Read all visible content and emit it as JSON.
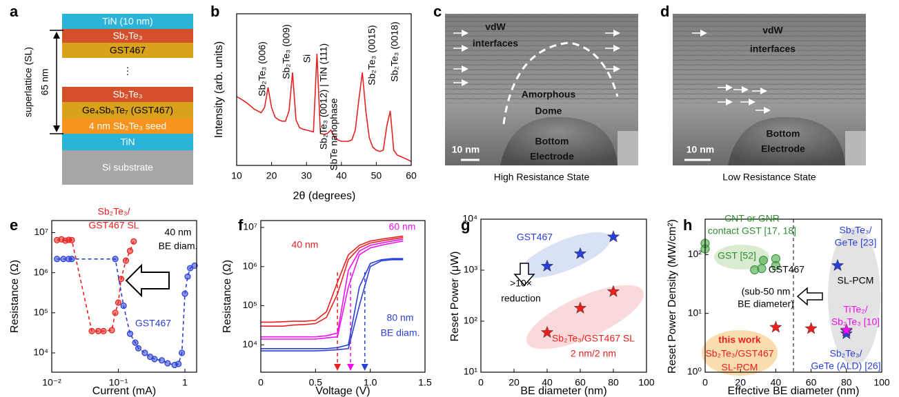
{
  "diagram": {
    "label": "a",
    "layers": [
      {
        "text": "TiN (10 nm)",
        "color": "#2bb3d8",
        "text_color": "#ffffff"
      },
      {
        "text": "Sb₂Te₃",
        "color": "#d4502a",
        "text_color": "#ffffff"
      },
      {
        "text": "GST467",
        "color": "#d9a21b",
        "text_color": "#000000"
      },
      {
        "text": "Sb₂Te₃",
        "color": "#d4502a",
        "text_color": "#ffffff"
      },
      {
        "text": "Ge₄Sb₆Te₇ (GST467)",
        "color": "#d9a21b",
        "text_color": "#000000"
      },
      {
        "text": "4 nm Sb₂Te₃ seed",
        "color": "#f7941d",
        "text_color": "#ffffff"
      },
      {
        "text": "TiN",
        "color": "#2bb3d8",
        "text_color": "#ffffff"
      },
      {
        "text": "Si substrate",
        "color": "#a6a6a6",
        "text_color": "#ffffff"
      }
    ],
    "ellipsis": "⋮",
    "side_label": "superlattice (SL)",
    "thickness": "65 nm"
  },
  "images": [
    {
      "label": "c",
      "caption": "High Resistance State",
      "texts": [
        [
          "vdW",
          "interfaces"
        ],
        [
          "Amorphous",
          "Dome"
        ],
        [
          "Bottom",
          "Electrode"
        ],
        [
          "10 nm"
        ]
      ]
    },
    {
      "label": "d",
      "caption": "Low Resistance State",
      "texts": [
        [
          "vdW",
          "interfaces"
        ],
        [
          "Bottom",
          "Electrode"
        ],
        [
          "10 nm"
        ]
      ]
    }
  ],
  "chart_data": [
    {
      "type": "line",
      "label": "b",
      "xlabel": "2θ (degrees)",
      "ylabel": "Intensity (arb. units)",
      "ylog": true,
      "xlim": [
        10,
        60
      ],
      "xticks": [
        10,
        20,
        30,
        40,
        50,
        60
      ],
      "ylim": [
        1,
        1000
      ],
      "x": [
        10,
        11,
        12,
        13,
        14,
        15,
        16,
        17,
        18,
        19,
        20,
        21,
        22,
        23,
        24,
        25,
        26,
        27,
        28,
        29,
        30,
        31,
        32,
        33,
        34,
        35,
        36,
        37,
        38,
        39,
        40,
        41,
        42,
        43,
        44,
        45,
        46,
        47,
        48,
        49,
        50,
        51,
        52,
        53,
        54,
        55,
        56,
        57,
        58,
        59,
        60
      ],
      "series": [
        {
          "color": "#e8201e",
          "values": [
            23,
            21,
            19,
            17,
            15,
            13,
            12,
            11,
            14,
            35,
            14,
            9,
            8,
            7.5,
            7.5,
            12,
            69,
            8,
            5.6,
            5.2,
            5,
            4.8,
            4.6,
            162,
            4.3,
            4.1,
            4.3,
            5,
            3.6,
            3.2,
            3,
            3,
            3,
            3.2,
            5,
            20,
            69,
            12,
            3.5,
            2.3,
            2,
            1.9,
            2,
            6,
            12,
            2,
            1.6,
            1.5,
            1.4,
            1.3,
            1.2
          ]
        }
      ],
      "annotations": [
        {
          "text": [
            "Sb₂Te₃ (006)"
          ],
          "color": "#000000"
        },
        {
          "text": [
            "Sb₂Te₃ (009)"
          ],
          "color": "#000000"
        },
        {
          "text": [
            "Si"
          ],
          "color": "#000000"
        },
        {
          "text": [
            "Sb₂Te₃ (0012) | TiN (111)"
          ],
          "color": "#000000"
        },
        {
          "text": [
            "SbTe nanophase"
          ],
          "color": "#000000"
        },
        {
          "text": [
            "Sb₂Te₃ (0015)"
          ],
          "color": "#000000"
        },
        {
          "text": [
            "Sb₂Te₃ (0018)"
          ],
          "color": "#000000"
        }
      ]
    },
    {
      "type": "line",
      "label": "e",
      "xlabel": "Current (mA)",
      "ylabel": "Resistance (Ω)",
      "xlog": true,
      "ylog": true,
      "xlim": [
        0.01,
        1.5
      ],
      "xticks": [
        {
          "value": 0.01,
          "label": "10⁻²"
        },
        {
          "value": 0.1,
          "label": "10⁻¹"
        },
        1
      ],
      "ylim": [
        3300,
        20000000
      ],
      "yticks": [
        {
          "value": 10000,
          "label": "10⁴"
        },
        {
          "value": 100000,
          "label": "10⁵"
        },
        {
          "value": 1000000,
          "label": "10⁶"
        },
        {
          "value": 10000000,
          "label": "10⁷"
        }
      ],
      "series": [
        {
          "color": "#e8201e",
          "dashed": true,
          "marker": "circle",
          "x": [
            0.012,
            0.014,
            0.016,
            0.018,
            0.02,
            0.04,
            0.05,
            0.06,
            0.08,
            0.09,
            0.1,
            0.11,
            0.13,
            0.15,
            0.17
          ],
          "values": [
            6500000,
            6800000,
            6300000,
            6600000,
            6500000,
            35000,
            35000,
            35000,
            37000,
            100000,
            180000,
            700000,
            2000000,
            3500000,
            6000000
          ]
        },
        {
          "color": "#2a3fd6",
          "dashed": true,
          "marker": "circle",
          "x": [
            0.012,
            0.015,
            0.018,
            0.02,
            0.09,
            0.12,
            0.15,
            0.18,
            0.2,
            0.25,
            0.3,
            0.35,
            0.45,
            0.55,
            0.7,
            0.8,
            0.9,
            1,
            1.1,
            1.2,
            1.4
          ],
          "values": [
            2200000,
            2200000,
            2200000,
            2200000,
            2200000,
            150000,
            30000,
            18000,
            13000,
            10000,
            8000,
            7000,
            6500,
            5500,
            5000,
            5300,
            10000,
            300000,
            800000,
            1300000,
            1500000
          ]
        }
      ],
      "annotations": [
        {
          "text": [
            "Sb₂Te₃/",
            "GST467 SL"
          ],
          "color": "#e8201e"
        },
        {
          "text": [
            "40 nm",
            "BE diam."
          ],
          "color": "#000000"
        },
        {
          "text": [
            "GST467"
          ],
          "color": "#2a3fd6"
        }
      ]
    },
    {
      "type": "line",
      "label": "f",
      "xlabel": "Voltage (V)",
      "ylabel": "Resistance (Ω)",
      "ylog": true,
      "xlim": [
        0,
        1.5
      ],
      "xticks": [
        0,
        0.5,
        {
          "value": 1,
          "label": "1.0"
        },
        1.5
      ],
      "ylim": [
        2000,
        15000000
      ],
      "yticks": [
        {
          "value": 10000,
          "label": "10⁴"
        },
        {
          "value": 100000,
          "label": "10⁵"
        },
        {
          "value": 1000000,
          "label": "10⁶"
        },
        {
          "value": 10000000,
          "label": "10⁷"
        }
      ],
      "x": [
        0,
        0.1,
        0.2,
        0.3,
        0.4,
        0.5,
        0.6,
        0.7,
        0.8,
        0.9,
        1,
        1.1,
        1.2,
        1.3
      ],
      "series": [
        {
          "color": "#e8201e",
          "values": [
            30000,
            30000,
            30000,
            32000,
            33000,
            35000,
            50000,
            200000,
            1500000,
            3000000,
            4000000,
            4500000,
            5000000,
            5500000
          ]
        },
        {
          "color": "#e8201e",
          "values": [
            38000,
            38000,
            39000,
            40000,
            40000,
            42000,
            70000,
            400000,
            2000000,
            3500000,
            4500000,
            5000000,
            5500000,
            6000000
          ]
        },
        {
          "color": "#ee10ee",
          "values": [
            14000,
            14000,
            14000,
            14000,
            14000,
            14000,
            15000,
            16000,
            300000,
            2000000,
            3000000,
            3500000,
            4000000,
            4500000
          ]
        },
        {
          "color": "#ee10ee",
          "values": [
            16000,
            16000,
            16000,
            16000,
            16000,
            16000,
            17000,
            20000,
            800000,
            2500000,
            3500000,
            4000000,
            4500000,
            5000000
          ]
        },
        {
          "color": "#2a3fd6",
          "values": [
            7000,
            7000,
            7000,
            7000,
            7000,
            7000,
            7200,
            7500,
            8000,
            100000,
            1000000,
            1400000,
            1500000,
            1500000
          ]
        },
        {
          "color": "#2a3fd6",
          "values": [
            8000,
            8000,
            8000,
            8000,
            8000,
            8000,
            8000,
            8500,
            10000,
            300000,
            1200000,
            1500000,
            1600000,
            1600000
          ]
        }
      ],
      "thresholds": [
        0.7,
        0.82,
        0.95
      ],
      "threshold_colors": [
        "#e8201e",
        "#ee10ee",
        "#2a3fd6"
      ],
      "annotations": [
        {
          "text": [
            "40 nm"
          ],
          "color": "#e8201e"
        },
        {
          "text": [
            "60 nm"
          ],
          "color": "#ee10ee"
        },
        {
          "text": [
            "80 nm",
            "BE diam."
          ],
          "color": "#2a3fd6"
        }
      ]
    },
    {
      "type": "scatter",
      "label": "g",
      "xlabel": "BE diameter (nm)",
      "ylabel": "Reset Power (μW)",
      "ylog": true,
      "xlim": [
        0,
        100
      ],
      "xticks": [
        0,
        20,
        40,
        60,
        80,
        100
      ],
      "ylim": [
        10,
        10000
      ],
      "yticks": [
        {
          "value": 10,
          "label": "10¹"
        },
        {
          "value": 100,
          "label": "10²"
        },
        {
          "value": 1000,
          "label": "10³"
        },
        {
          "value": 10000,
          "label": "10⁴"
        }
      ],
      "series": [
        {
          "color": "#2a3fd6",
          "marker": "star",
          "x": [
            40,
            60,
            80
          ],
          "values": [
            1200,
            2100,
            4500
          ]
        },
        {
          "color": "#e8201e",
          "marker": "star",
          "x": [
            40,
            60,
            80
          ],
          "values": [
            60,
            180,
            380
          ]
        }
      ],
      "annotations": [
        {
          "text": [
            "GST467"
          ],
          "color": "#2a3fd6"
        },
        {
          "text": [
            ">10×",
            "reduction"
          ],
          "color": "#000000"
        },
        {
          "text": [
            "Sb₂Te₃/GST467 SL",
            "2 nm/2 nm"
          ],
          "color": "#e8201e"
        }
      ]
    },
    {
      "type": "scatter",
      "label": "h",
      "xlabel": "Effective BE diameter (nm)",
      "ylabel": "Reset Power Density (MW/cm²)",
      "ylog": true,
      "xlim": [
        0,
        100
      ],
      "xticks": [
        0,
        20,
        40,
        60,
        80,
        100
      ],
      "ylim": [
        1,
        400
      ],
      "yticks": [
        {
          "value": 1,
          "label": "10⁰"
        },
        {
          "value": 10,
          "label": "10¹"
        },
        {
          "value": 100,
          "label": "10²"
        }
      ],
      "divider_x": 50,
      "series": [
        {
          "color": "#3c9a3c",
          "marker": "circle",
          "x": [
            0,
            0,
            28,
            32,
            33,
            40,
            40
          ],
          "values": [
            155,
            125,
            55,
            58,
            80,
            85,
            65
          ]
        },
        {
          "color": "#e8201e",
          "marker": "star",
          "x": [
            40,
            60
          ],
          "values": [
            5.8,
            5.5
          ]
        },
        {
          "color": "#2a3fd6",
          "marker": "star",
          "x": [
            75,
            80,
            80
          ],
          "values": [
            65,
            5,
            4.5
          ]
        },
        {
          "color": "#ee10ee",
          "marker": "star",
          "x": [
            80
          ],
          "values": [
            5.2
          ]
        }
      ],
      "annotations": [
        {
          "text": [
            "CNT or GNR",
            "contact GST [17, 18]"
          ],
          "color": "#2e8b2e"
        },
        {
          "text": [
            "GST [52]"
          ],
          "color": "#2e8b2e"
        },
        {
          "text": [
            "GST467"
          ],
          "color": "#000000"
        },
        {
          "text": [
            "(sub-50 nm",
            "BE diameter)"
          ],
          "color": "#000000"
        },
        {
          "text": [
            "this work"
          ],
          "color": "#e8201e",
          "bold": true
        },
        {
          "text": [
            "Sb₂Te₃/GST467",
            "SL-PCM"
          ],
          "color": "#e8201e"
        },
        {
          "text": [
            "Sb₂Te₃/",
            "GeTe [23]"
          ],
          "color": "#2a3fd6"
        },
        {
          "text": [
            "SL-PCM"
          ],
          "color": "#000000"
        },
        {
          "text": [
            "TiTe₂/",
            "Sb₂Te₃ [10]"
          ],
          "color": "#ee10ee"
        },
        {
          "text": [
            "Sb₂Te₃/",
            "GeTe (ALD) [26]"
          ],
          "color": "#2a3fd6"
        }
      ]
    }
  ]
}
